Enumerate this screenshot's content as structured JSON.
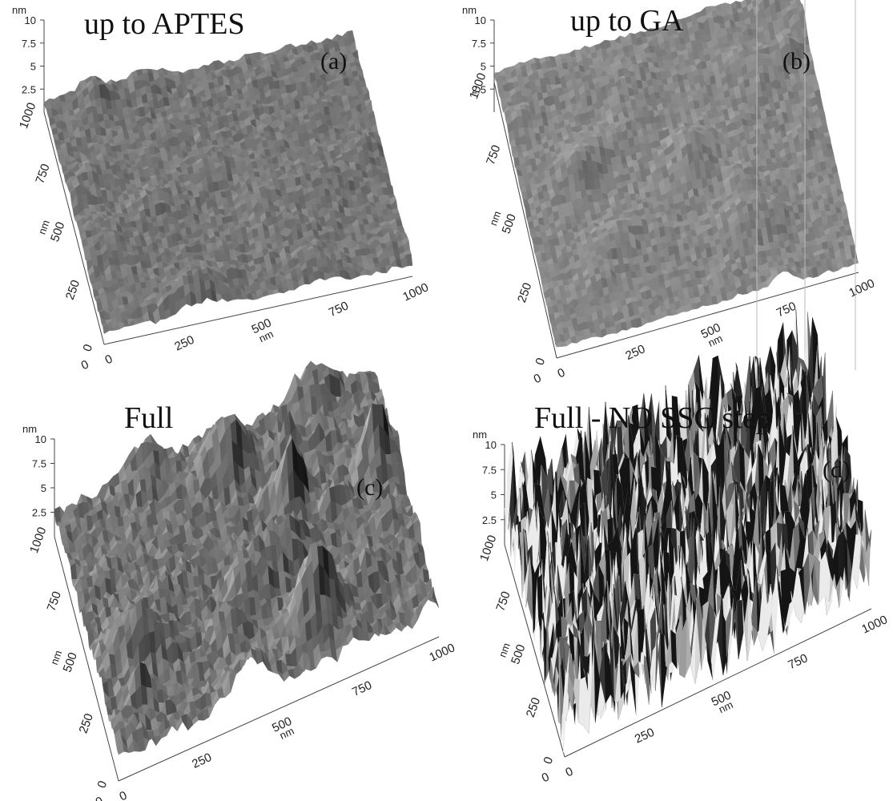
{
  "panels": [
    {
      "title": "up to APTES",
      "tag": "(a)",
      "z_unit": "nm",
      "z_ticks": [
        "10",
        "7.5",
        "5",
        "2.5"
      ],
      "y_ticks": [
        "1000",
        "750",
        "500",
        "250",
        "0"
      ],
      "y_unit": "nm",
      "x_ticks": [
        "0",
        "250",
        "500",
        "750",
        "1000"
      ],
      "x_unit": "nm",
      "surface": "smooth-granular"
    },
    {
      "title": "up to GA",
      "tag": "(b)",
      "z_unit": "nm",
      "z_ticks": [
        "10",
        "7.5",
        "5",
        "2.5"
      ],
      "y_ticks": [
        "1000",
        "750",
        "500",
        "250",
        "0"
      ],
      "y_unit": "nm",
      "x_ticks": [
        "0",
        "250",
        "500",
        "750",
        "1000"
      ],
      "x_unit": "nm",
      "surface": "smooth-pitted"
    },
    {
      "title": "Full",
      "tag": "(c)",
      "z_unit": "nm",
      "z_ticks": [
        "10",
        "7.5",
        "5",
        "2.5"
      ],
      "y_ticks": [
        "1000",
        "750",
        "500",
        "250",
        "0"
      ],
      "y_unit": "nm",
      "x_ticks": [
        "0",
        "250",
        "500",
        "750",
        "1000"
      ],
      "x_unit": "nm",
      "surface": "ridged"
    },
    {
      "title": "Full - NO SSC step",
      "tag": "(d)",
      "z_unit": "nm",
      "z_ticks": [
        "10",
        "7.5",
        "5",
        "2.5"
      ],
      "y_ticks": [
        "1000",
        "750",
        "500",
        "250",
        "0"
      ],
      "y_unit": "nm",
      "x_ticks": [
        "0",
        "250",
        "500",
        "750",
        "1000"
      ],
      "x_unit": "nm",
      "surface": "spiky"
    }
  ]
}
